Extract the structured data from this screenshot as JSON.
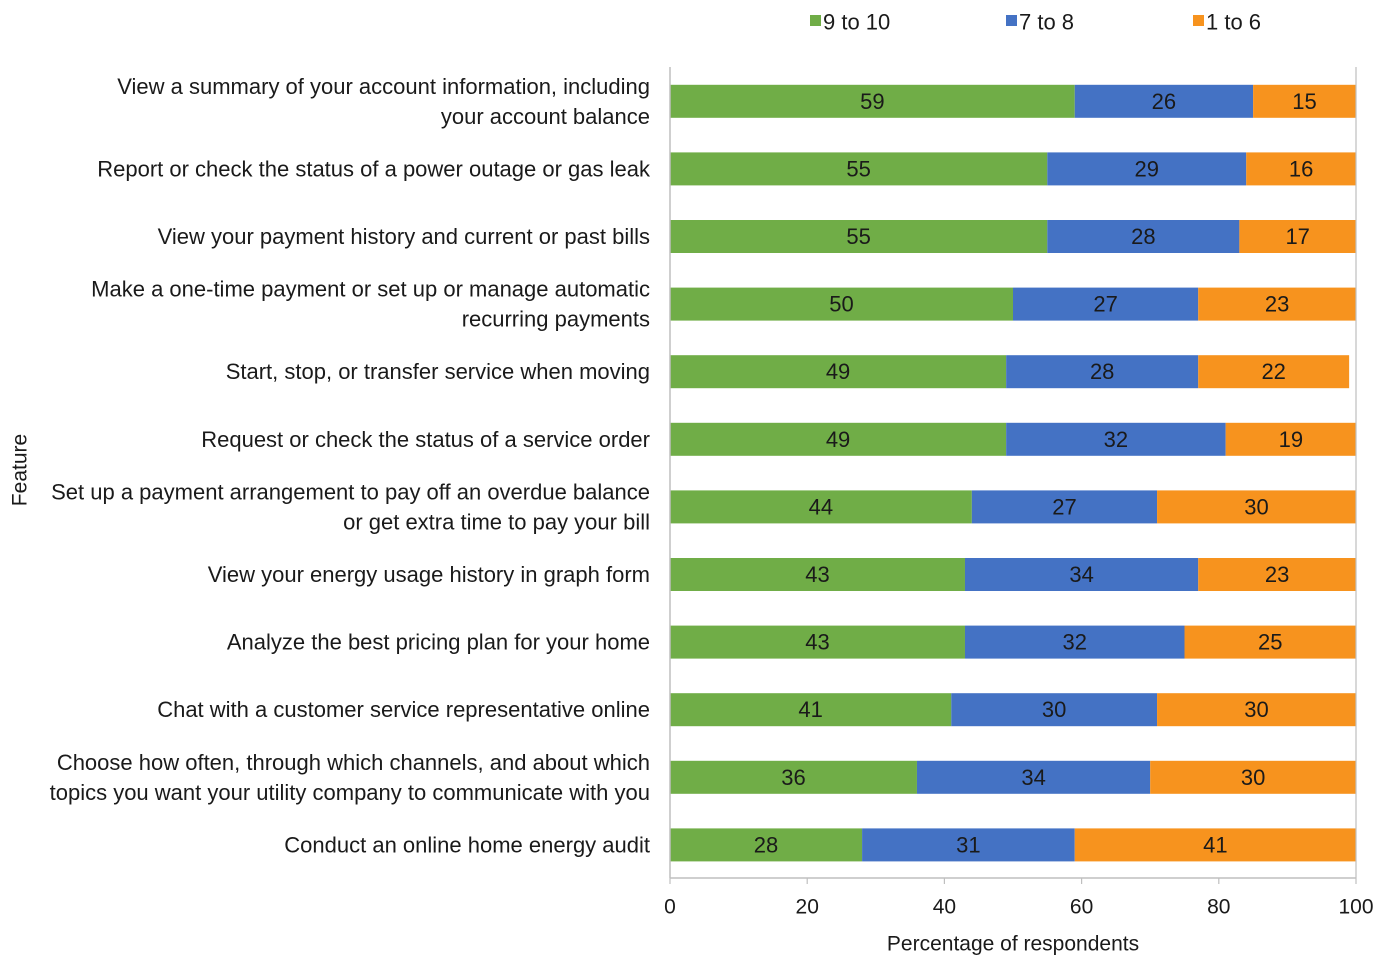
{
  "chart_data": {
    "type": "bar",
    "orientation": "horizontal",
    "stacked": true,
    "title": "",
    "xlabel": "Percentage of respondents",
    "ylabel": "Feature",
    "xlim": [
      0,
      100
    ],
    "xticks": [
      0,
      20,
      40,
      60,
      80,
      100
    ],
    "grid": false,
    "legend_position": "top",
    "categories": [
      "View a summary of your account information, including your account balance",
      "Report or check the status of a power outage or gas leak",
      "View your payment history and current or past bills",
      "Make a one-time payment or set up or manage automatic recurring payments",
      "Start, stop, or transfer service when moving",
      "Request or check the status of a service order",
      "Set up a payment arrangement to pay off an overdue balance or get extra time to pay your bill",
      "View your energy usage history in graph form",
      "Analyze the best pricing plan for your home",
      "Chat with a customer service representative online",
      "Choose how often, through which channels, and about which topics you want your utility company to communicate with you",
      "Conduct an online home energy audit"
    ],
    "category_lines": [
      [
        "View a summary of your account information, including",
        "your account balance"
      ],
      [
        "Report or check the status of a power outage or gas leak"
      ],
      [
        "View your payment history and current or past bills"
      ],
      [
        "Make a one-time payment or set up or manage automatic",
        "recurring payments"
      ],
      [
        "Start, stop, or transfer service when moving"
      ],
      [
        "Request or check the status of a service order"
      ],
      [
        "Set up a payment arrangement to pay off an overdue balance",
        "or get extra time to pay your bill"
      ],
      [
        "View your energy usage history in graph form"
      ],
      [
        "Analyze the best pricing plan for your home"
      ],
      [
        "Chat with a customer service representative online"
      ],
      [
        "Choose how often, through which channels, and about which",
        "topics you want your utility company to communicate with you"
      ],
      [
        "Conduct an online home energy audit"
      ]
    ],
    "series": [
      {
        "name": "9 to 10",
        "color": "#70ad47",
        "values": [
          59,
          55,
          55,
          50,
          49,
          49,
          44,
          43,
          43,
          41,
          36,
          28
        ]
      },
      {
        "name": "7 to 8",
        "color": "#4472c4",
        "values": [
          26,
          29,
          28,
          27,
          28,
          32,
          27,
          34,
          32,
          30,
          34,
          31
        ]
      },
      {
        "name": "1 to 6",
        "color": "#f7931e",
        "values": [
          15,
          16,
          17,
          23,
          22,
          19,
          30,
          23,
          25,
          30,
          30,
          41
        ]
      }
    ]
  }
}
